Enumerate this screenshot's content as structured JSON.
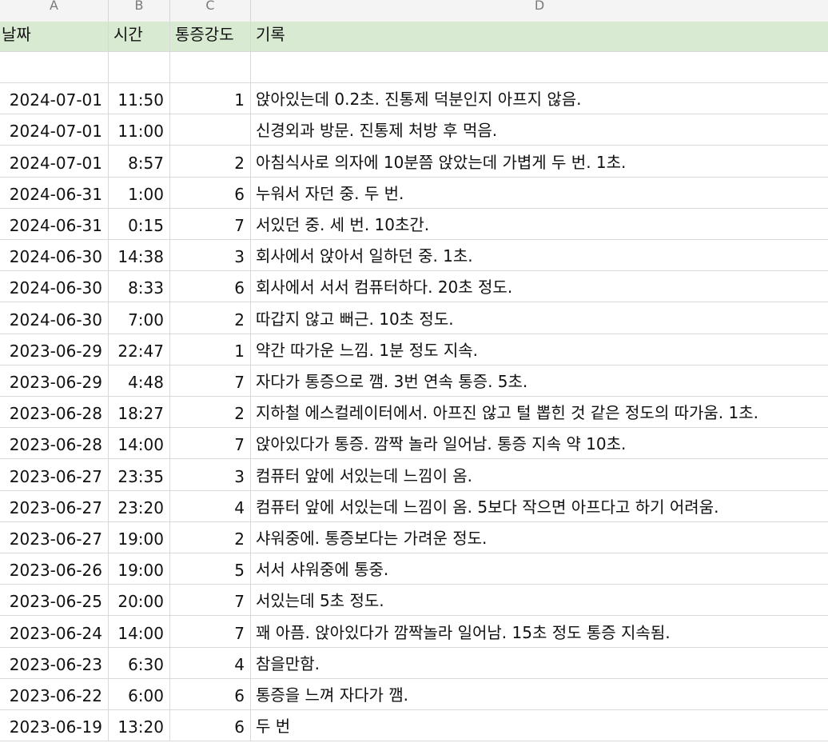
{
  "columns": [
    "A",
    "B",
    "C",
    "D"
  ],
  "header": {
    "date": "날짜",
    "time": "시간",
    "intensity": "통증강도",
    "note": "기록"
  },
  "rows": [
    {
      "date": "2024-07-01",
      "time": "11:50",
      "intensity": "1",
      "note": "앉아있는데 0.2초. 진통제 덕분인지 아프지 않음."
    },
    {
      "date": "2024-07-01",
      "time": "11:00",
      "intensity": "",
      "note": "신경외과 방문. 진통제 처방 후 먹음."
    },
    {
      "date": "2024-07-01",
      "time": "8:57",
      "intensity": "2",
      "note": "아침식사로 의자에 10분쯤 앉았는데 가볍게 두 번. 1초."
    },
    {
      "date": "2024-06-31",
      "time": "1:00",
      "intensity": "6",
      "note": "누워서 자던 중. 두 번."
    },
    {
      "date": "2024-06-31",
      "time": "0:15",
      "intensity": "7",
      "note": "서있던 중. 세 번. 10초간."
    },
    {
      "date": "2024-06-30",
      "time": "14:38",
      "intensity": "3",
      "note": "회사에서 앉아서 일하던 중. 1초."
    },
    {
      "date": "2024-06-30",
      "time": "8:33",
      "intensity": "6",
      "note": "회사에서 서서 컴퓨터하다. 20초 정도."
    },
    {
      "date": "2024-06-30",
      "time": "7:00",
      "intensity": "2",
      "note": "따갑지 않고 뻐근. 10초 정도."
    },
    {
      "date": "2023-06-29",
      "time": "22:47",
      "intensity": "1",
      "note": "약간 따가운 느낌. 1분 정도 지속."
    },
    {
      "date": "2023-06-29",
      "time": "4:48",
      "intensity": "7",
      "note": "자다가 통증으로 깸. 3번 연속 통증. 5초."
    },
    {
      "date": "2023-06-28",
      "time": "18:27",
      "intensity": "2",
      "note": "지하철 에스컬레이터에서. 아프진 않고 털 뽑힌 것 같은 정도의 따가움. 1초."
    },
    {
      "date": "2023-06-28",
      "time": "14:00",
      "intensity": "7",
      "note": "앉아있다가 통증. 깜짝 놀라 일어남. 통증 지속 약 10초."
    },
    {
      "date": "2023-06-27",
      "time": "23:35",
      "intensity": "3",
      "note": "컴퓨터 앞에 서있는데 느낌이 옴."
    },
    {
      "date": "2023-06-27",
      "time": "23:20",
      "intensity": "4",
      "note": "컴퓨터 앞에 서있는데 느낌이 옴. 5보다 작으면 아프다고 하기 어려움."
    },
    {
      "date": "2023-06-27",
      "time": "19:00",
      "intensity": "2",
      "note": "샤워중에. 통증보다는 가려운 정도."
    },
    {
      "date": "2023-06-26",
      "time": "19:00",
      "intensity": "5",
      "note": "서서 샤워중에 통중."
    },
    {
      "date": "2023-06-25",
      "time": "20:00",
      "intensity": "7",
      "note": "서있는데 5초 정도."
    },
    {
      "date": "2023-06-24",
      "time": "14:00",
      "intensity": "7",
      "note": "꽤 아픔. 앉아있다가 깜짝놀라 일어남. 15초 정도 통증 지속됨."
    },
    {
      "date": "2023-06-23",
      "time": "6:30",
      "intensity": "4",
      "note": "참을만함."
    },
    {
      "date": "2023-06-22",
      "time": "6:00",
      "intensity": "6",
      "note": "통증을 느껴 자다가 깸."
    },
    {
      "date": "2023-06-19",
      "time": "13:20",
      "intensity": "6",
      "note": "두 번"
    }
  ]
}
